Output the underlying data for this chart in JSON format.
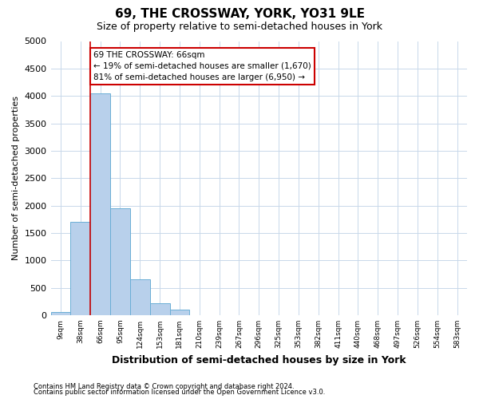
{
  "title": "69, THE CROSSWAY, YORK, YO31 9LE",
  "subtitle": "Size of property relative to semi-detached houses in York",
  "xlabel": "Distribution of semi-detached houses by size in York",
  "ylabel": "Number of semi-detached properties",
  "footnote1": "Contains HM Land Registry data © Crown copyright and database right 2024.",
  "footnote2": "Contains public sector information licensed under the Open Government Licence v3.0.",
  "bar_labels": [
    "9sqm",
    "38sqm",
    "66sqm",
    "95sqm",
    "124sqm",
    "153sqm",
    "181sqm",
    "210sqm",
    "239sqm",
    "267sqm",
    "296sqm",
    "325sqm",
    "353sqm",
    "382sqm",
    "411sqm",
    "440sqm",
    "468sqm",
    "497sqm",
    "526sqm",
    "554sqm",
    "583sqm"
  ],
  "bar_values": [
    50,
    1700,
    4050,
    1950,
    650,
    220,
    100,
    0,
    0,
    0,
    0,
    0,
    0,
    0,
    0,
    0,
    0,
    0,
    0,
    0,
    0
  ],
  "bar_color": "#b8d0eb",
  "bar_edge_color": "#6aaed6",
  "property_line_index": 2,
  "annotation_line1": "69 THE CROSSWAY: 66sqm",
  "annotation_line2": "← 19% of semi-detached houses are smaller (1,670)",
  "annotation_line3": "81% of semi-detached houses are larger (6,950) →",
  "annotation_box_color": "#ffffff",
  "annotation_box_edge": "#cc0000",
  "red_line_color": "#cc0000",
  "ylim": [
    0,
    5000
  ],
  "yticks": [
    0,
    500,
    1000,
    1500,
    2000,
    2500,
    3000,
    3500,
    4000,
    4500,
    5000
  ],
  "grid_color": "#c8d8ea",
  "background_color": "#ffffff",
  "title_fontsize": 11,
  "subtitle_fontsize": 9,
  "footnote_fontsize": 6,
  "ylabel_fontsize": 8,
  "xlabel_fontsize": 9
}
